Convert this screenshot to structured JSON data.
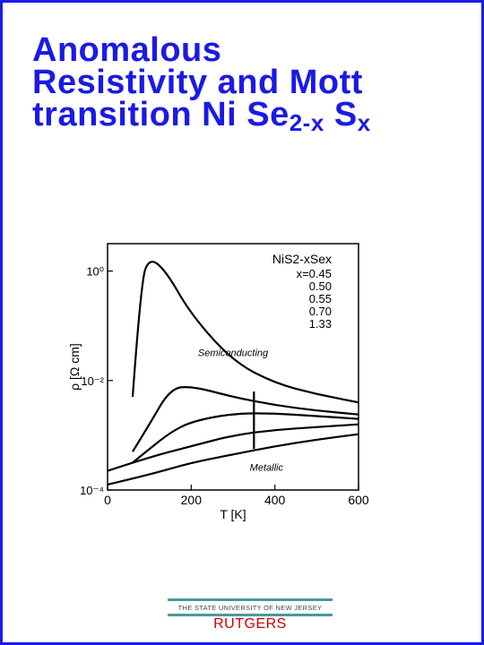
{
  "slide": {
    "title_line1": "Anomalous",
    "title_line2": "Resistivity and Mott",
    "title_line3_main": "transition Ni Se",
    "title_line3_sub1": "2-x",
    "title_line3_mid": " S",
    "title_line3_sub2": "x",
    "accent_color": "#1a1ae6"
  },
  "chart_data": {
    "type": "line",
    "xlabel": "T [K]",
    "ylabel": "ρ [Ω cm]",
    "xlim": [
      0,
      600
    ],
    "x_ticks": [
      "0",
      "200",
      "400",
      "600"
    ],
    "y_ticks": [
      "10⁰",
      "10⁻²",
      "10⁻⁴"
    ],
    "ylim_log10": [
      -4,
      0.5
    ],
    "legend_title": "NiS2-xSex",
    "legend_entries": [
      "x=0.45",
      "0.50",
      "0.55",
      "0.70",
      "1.33"
    ],
    "annotations": [
      "Semiconducting",
      "Metallic"
    ],
    "series": [
      {
        "x": [
          60,
          80,
          100,
          140,
          200,
          300,
          400,
          500,
          600
        ],
        "log10_y": [
          -2.3,
          -0.2,
          0.25,
          0.0,
          -0.8,
          -1.65,
          -2.05,
          -2.25,
          -2.4
        ]
      },
      {
        "x": [
          60,
          100,
          150,
          200,
          300,
          400,
          500,
          600
        ],
        "log10_y": [
          -3.3,
          -2.8,
          -2.15,
          -2.1,
          -2.3,
          -2.45,
          -2.55,
          -2.62
        ]
      },
      {
        "x": [
          60,
          100,
          150,
          200,
          300,
          400,
          500,
          600
        ],
        "log10_y": [
          -3.5,
          -3.25,
          -2.95,
          -2.75,
          -2.6,
          -2.6,
          -2.65,
          -2.7
        ]
      },
      {
        "x": [
          0,
          100,
          200,
          300,
          400,
          500,
          600
        ],
        "log10_y": [
          -3.65,
          -3.4,
          -3.2,
          -3.0,
          -2.9,
          -2.85,
          -2.8
        ]
      },
      {
        "x": [
          0,
          100,
          200,
          300,
          400,
          500,
          600
        ],
        "log10_y": [
          -3.9,
          -3.72,
          -3.5,
          -3.35,
          -3.2,
          -3.08,
          -2.98
        ]
      }
    ]
  },
  "footer": {
    "university": "THE STATE UNIVERSITY OF NEW JERSEY",
    "name": "RUTGERS"
  }
}
